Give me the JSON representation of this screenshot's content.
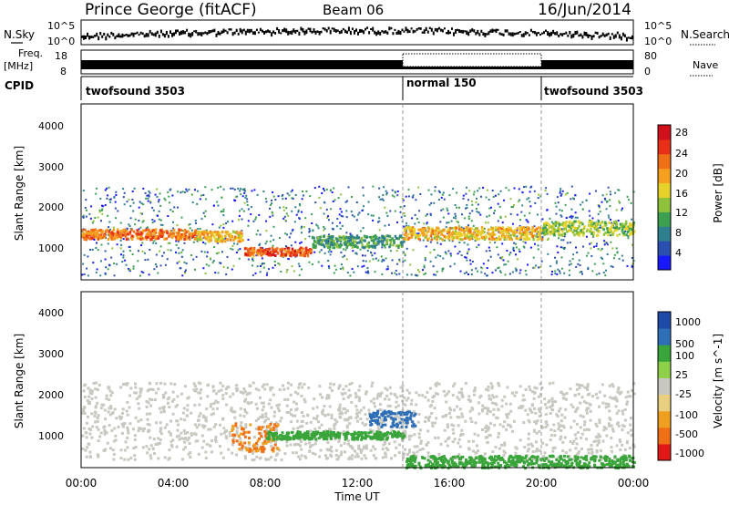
{
  "header": {
    "title": "Prince George (fitACF)",
    "beam": "Beam 06",
    "date": "16/Jun/2014"
  },
  "noise_panel": {
    "left_label": "N.Sky",
    "right_label": "N.Search",
    "left_ticks": [
      "10^5",
      "10^0"
    ],
    "right_ticks": [
      "10^5",
      "10^0"
    ]
  },
  "freq_panel": {
    "left_label_1": "Freq.",
    "left_label_2": "[MHz]",
    "right_label": "Nave",
    "left_ticks": [
      "18",
      "8"
    ],
    "right_ticks": [
      "80",
      "0"
    ]
  },
  "cpid_panel": {
    "label": "CPID",
    "segments": [
      {
        "name": "twofsound 3503",
        "start_hour": 0,
        "end_hour": 14
      },
      {
        "name": "normal 150",
        "start_hour": 14,
        "end_hour": 20
      },
      {
        "name": "twofsound 3503",
        "start_hour": 20,
        "end_hour": 24
      }
    ]
  },
  "x_axis": {
    "label": "Time UT",
    "ticks": [
      "00:00",
      "04:00",
      "08:00",
      "12:00",
      "16:00",
      "20:00",
      "00:00"
    ]
  },
  "power_panel": {
    "ylabel": "Slant Range [km]",
    "yticks": [
      "4000",
      "3000",
      "2000",
      "1000"
    ],
    "colorbar_label": "Power [dB]",
    "colorbar_ticks": [
      "28",
      "24",
      "20",
      "16",
      "12",
      "8",
      "4"
    ]
  },
  "velocity_panel": {
    "ylabel": "Slant Range [km]",
    "yticks": [
      "4000",
      "3000",
      "2000",
      "1000"
    ],
    "colorbar_label": "Velocity [m s^-1]",
    "colorbar_ticks": [
      "1000",
      "500",
      "100",
      "25",
      "-25",
      "-100",
      "-500",
      "-1000"
    ]
  },
  "chart_data": {
    "type": "heatmap",
    "title": "Prince George (fitACF)",
    "xlabel": "Time UT",
    "ylabel": "Slant Range [km]",
    "xlim": [
      0,
      24
    ],
    "ylim": [
      180,
      4500
    ],
    "mode_changes_hours": [
      14,
      20
    ],
    "power_bands": [
      {
        "t0": 0,
        "t1": 5,
        "range": [
          1200,
          1450
        ],
        "db": 24
      },
      {
        "t0": 5,
        "t1": 7,
        "range": [
          1150,
          1400
        ],
        "db": 20
      },
      {
        "t0": 7,
        "t1": 10,
        "range": [
          800,
          1000
        ],
        "db": 26
      },
      {
        "t0": 10,
        "t1": 14,
        "range": [
          1000,
          1300
        ],
        "db": 12
      },
      {
        "t0": 14,
        "t1": 20,
        "range": [
          1200,
          1500
        ],
        "db": 20
      },
      {
        "t0": 20,
        "t1": 24,
        "range": [
          1300,
          1650
        ],
        "db": 16
      }
    ],
    "velocity_bands": [
      {
        "t0": 6.5,
        "t1": 8.5,
        "range": [
          600,
          1300
        ],
        "v": -300
      },
      {
        "t0": 12.5,
        "t1": 14.5,
        "range": [
          1200,
          1600
        ],
        "v": 500
      },
      {
        "t0": 8,
        "t1": 14,
        "range": [
          900,
          1100
        ],
        "v": 100
      },
      {
        "t0": 14,
        "t1": 24,
        "range": [
          200,
          500
        ],
        "v": 100
      }
    ]
  }
}
